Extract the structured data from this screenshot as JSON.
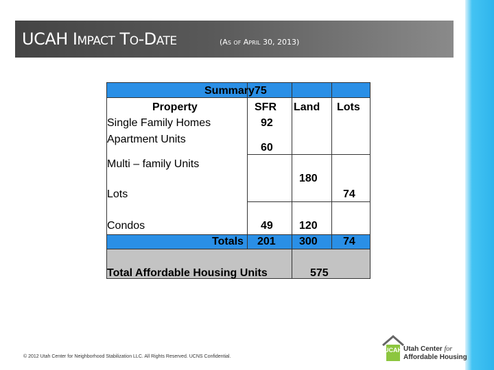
{
  "slide": {
    "title": "UCAH Impact To-Date",
    "subtitle": "(As of April 30, 2013)"
  },
  "table": {
    "summary": "Summary75",
    "headers": {
      "property": "Property",
      "sfr": "SFR",
      "land": "Land",
      "lots": "Lots"
    },
    "rows": {
      "single_family": {
        "label": "Single Family Homes",
        "sfr": "92"
      },
      "apartment": {
        "label": "Apartment Units",
        "sfr": "60"
      },
      "multi_family": {
        "label": "Multi – family Units",
        "land": "180"
      },
      "lots": {
        "label": "Lots",
        "lots": "74"
      },
      "condos": {
        "label": "Condos",
        "sfr": "49",
        "land": "120"
      },
      "totals": {
        "label": "Totals",
        "sfr": "201",
        "land": "300",
        "lots": "74"
      }
    },
    "total_affordable": {
      "label": "Total Affordable Housing Units",
      "value": "575"
    }
  },
  "footer": "© 2012 Utah Center for Neighborhood Stabilization LLC. All Rights Reserved. UCNS Confidential.",
  "logo": {
    "line1": "Utah Center",
    "line1_italic": "for",
    "line2": "Affordable Housing",
    "mark": "UCAH"
  },
  "colors": {
    "header_blue": "#2a8fe6",
    "total_gray": "#c3c3c3",
    "stripe_blue": "#2fb5ec",
    "logo_green": "#8cc63f"
  }
}
